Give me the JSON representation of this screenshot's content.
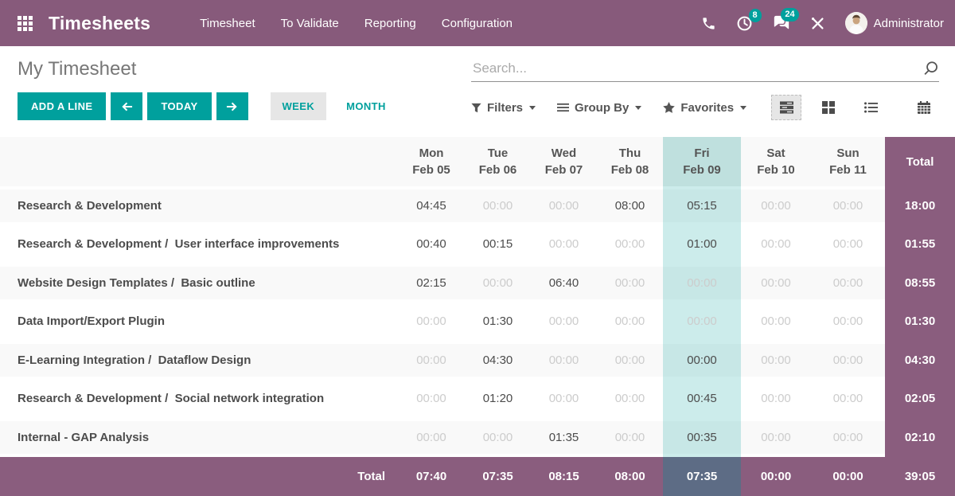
{
  "navbar": {
    "app_title": "Timesheets",
    "menu_items": [
      "Timesheet",
      "To Validate",
      "Reporting",
      "Configuration"
    ],
    "badges": {
      "activities": "8",
      "messages": "24"
    },
    "user_name": "Administrator"
  },
  "control_panel": {
    "title": "My Timesheet",
    "search_placeholder": "Search...",
    "buttons": {
      "add_line": "ADD A LINE",
      "today": "TODAY",
      "week": "WEEK",
      "month": "MONTH"
    },
    "dropdowns": [
      {
        "label": "Filters"
      },
      {
        "label": "Group By"
      },
      {
        "label": "Favorites"
      }
    ],
    "view_switcher": [
      "grid",
      "kanban",
      "list",
      "calendar"
    ],
    "active_view": "grid",
    "active_range": "week"
  },
  "grid": {
    "columns": [
      {
        "day": "Mon",
        "date": "Feb 05"
      },
      {
        "day": "Tue",
        "date": "Feb 06"
      },
      {
        "day": "Wed",
        "date": "Feb 07"
      },
      {
        "day": "Thu",
        "date": "Feb 08"
      },
      {
        "day": "Fri",
        "date": "Feb 09"
      },
      {
        "day": "Sat",
        "date": "Feb 10"
      },
      {
        "day": "Sun",
        "date": "Feb 11"
      }
    ],
    "today_index": 4,
    "total_label": "Total",
    "rows": [
      {
        "label": "Research & Development",
        "cells": [
          {
            "t": "04:45",
            "muted": false
          },
          {
            "t": "00:00",
            "muted": true
          },
          {
            "t": "00:00",
            "muted": true
          },
          {
            "t": "08:00",
            "muted": false
          },
          {
            "t": "05:15",
            "muted": false
          },
          {
            "t": "00:00",
            "muted": true
          },
          {
            "t": "00:00",
            "muted": true
          }
        ],
        "total": "18:00"
      },
      {
        "label": "Research & Development /  User interface improvements",
        "cells": [
          {
            "t": "00:40",
            "muted": false
          },
          {
            "t": "00:15",
            "muted": false
          },
          {
            "t": "00:00",
            "muted": true
          },
          {
            "t": "00:00",
            "muted": true
          },
          {
            "t": "01:00",
            "muted": false
          },
          {
            "t": "00:00",
            "muted": true
          },
          {
            "t": "00:00",
            "muted": true
          }
        ],
        "total": "01:55"
      },
      {
        "label": "Website Design Templates /  Basic outline",
        "cells": [
          {
            "t": "02:15",
            "muted": false
          },
          {
            "t": "00:00",
            "muted": true
          },
          {
            "t": "06:40",
            "muted": false
          },
          {
            "t": "00:00",
            "muted": true
          },
          {
            "t": "00:00",
            "muted": true
          },
          {
            "t": "00:00",
            "muted": true
          },
          {
            "t": "00:00",
            "muted": true
          }
        ],
        "total": "08:55"
      },
      {
        "label": "Data Import/Export Plugin",
        "cells": [
          {
            "t": "00:00",
            "muted": true
          },
          {
            "t": "01:30",
            "muted": false
          },
          {
            "t": "00:00",
            "muted": true
          },
          {
            "t": "00:00",
            "muted": true
          },
          {
            "t": "00:00",
            "muted": true
          },
          {
            "t": "00:00",
            "muted": true
          },
          {
            "t": "00:00",
            "muted": true
          }
        ],
        "total": "01:30"
      },
      {
        "label": "E-Learning Integration /  Dataflow Design",
        "cells": [
          {
            "t": "00:00",
            "muted": true
          },
          {
            "t": "04:30",
            "muted": false
          },
          {
            "t": "00:00",
            "muted": true
          },
          {
            "t": "00:00",
            "muted": true
          },
          {
            "t": "00:00",
            "muted": false
          },
          {
            "t": "00:00",
            "muted": true
          },
          {
            "t": "00:00",
            "muted": true
          }
        ],
        "total": "04:30"
      },
      {
        "label": "Research & Development /  Social network integration",
        "cells": [
          {
            "t": "00:00",
            "muted": true
          },
          {
            "t": "01:20",
            "muted": false
          },
          {
            "t": "00:00",
            "muted": true
          },
          {
            "t": "00:00",
            "muted": true
          },
          {
            "t": "00:45",
            "muted": false
          },
          {
            "t": "00:00",
            "muted": true
          },
          {
            "t": "00:00",
            "muted": true
          }
        ],
        "total": "02:05"
      },
      {
        "label": "Internal - GAP Analysis",
        "cells": [
          {
            "t": "00:00",
            "muted": true
          },
          {
            "t": "00:00",
            "muted": true
          },
          {
            "t": "01:35",
            "muted": false
          },
          {
            "t": "00:00",
            "muted": true
          },
          {
            "t": "00:35",
            "muted": false
          },
          {
            "t": "00:00",
            "muted": true
          },
          {
            "t": "00:00",
            "muted": true
          }
        ],
        "total": "02:10"
      }
    ],
    "footer": {
      "label": "Total",
      "cells": [
        "07:40",
        "07:35",
        "08:15",
        "08:00",
        "07:35",
        "00:00",
        "00:00"
      ],
      "total": "39:05"
    }
  },
  "colors": {
    "navbar": "#875a7b",
    "accent": "#00a09d",
    "total_column": "#8a5d7e",
    "today_header": "#bfe0de",
    "today_footer": "#5d6c85"
  }
}
